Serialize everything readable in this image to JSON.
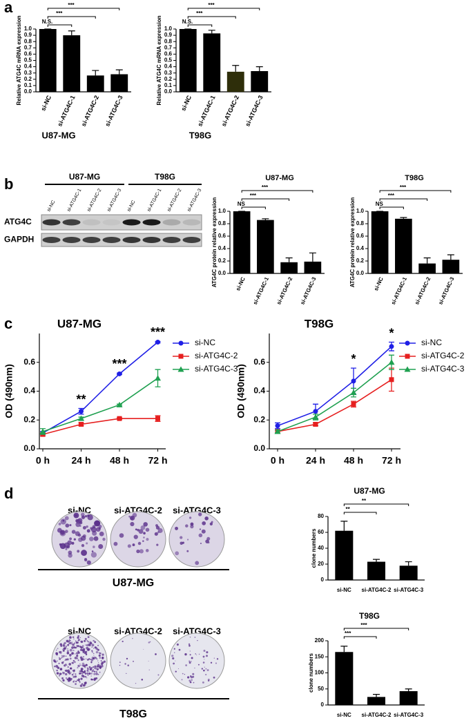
{
  "panels": [
    "a",
    "b",
    "c",
    "d"
  ],
  "blot": {
    "cell_lines": [
      "U87-MG",
      "T98G"
    ],
    "lanes": [
      "si-NC",
      "si-ATG4C-1",
      "si-ATG4C-2",
      "si-ATG4C-3",
      "si-NC",
      "si-ATG4C-1",
      "si-ATG4C-2",
      "si-ATG4C-3"
    ],
    "rows": [
      "ATG4C",
      "GAPDH"
    ]
  },
  "colony": {
    "rows": [
      {
        "cell_line": "U87-MG",
        "conditions": [
          "si-NC",
          "si-ATG4C-2",
          "si-ATG4C-3"
        ]
      },
      {
        "cell_line": "T98G",
        "conditions": [
          "si-NC",
          "si-ATG4C-2",
          "si-ATG4C-3"
        ]
      }
    ]
  },
  "chart_data": [
    {
      "type": "bar",
      "title": "U87-MG",
      "ylabel": "Relative ATG4C mRNA expression",
      "categories": [
        "si-NC",
        "si-ATG4C-1",
        "si-ATG4C-2",
        "si-ATG4C-3"
      ],
      "values": [
        1.0,
        0.9,
        0.26,
        0.28
      ],
      "errors": [
        0,
        0.07,
        0.08,
        0.07
      ],
      "color": "#000000",
      "ylim": [
        0,
        1
      ],
      "yticks": [
        {
          "value": 0,
          "label": "0.0"
        },
        0.1,
        0.2,
        0.3,
        0.4,
        0.5,
        0.6,
        0.7,
        0.8,
        0.9,
        {
          "value": 1,
          "label": "1.0"
        }
      ],
      "significance": [
        "N.S.",
        "***",
        "***"
      ]
    },
    {
      "type": "bar",
      "title": "T98G",
      "ylabel": "Relative ATG4C mRNA expression",
      "categories": [
        "si-NC",
        "si-ATG4C-1",
        "si-ATG4C-2",
        "si-ATG4C-3"
      ],
      "values": [
        1.0,
        0.93,
        0.32,
        0.33
      ],
      "errors": [
        0,
        0.05,
        0.1,
        0.07
      ],
      "colors": [
        "#000000",
        "#000000",
        "#2e2e0a",
        "#000000"
      ],
      "ylim": [
        0,
        1
      ],
      "yticks": [
        {
          "value": 0,
          "label": "0.0"
        },
        0.1,
        0.2,
        0.3,
        0.4,
        0.5,
        0.6,
        0.7,
        0.8,
        0.9,
        {
          "value": 1,
          "label": "1.0"
        }
      ],
      "significance": [
        "N.S.",
        "***",
        "***"
      ]
    },
    {
      "type": "bar",
      "title": "U87-MG",
      "ylabel": "ATG4C protein relative expression",
      "categories": [
        "si-NC",
        "si-ATG4C-1",
        "si-ATG4C-2",
        "si-ATG4C-3"
      ],
      "values": [
        1.0,
        0.86,
        0.18,
        0.19
      ],
      "errors": [
        0,
        0.02,
        0.07,
        0.14
      ],
      "color": "#000000",
      "ylim": [
        0,
        1
      ],
      "yticks": [
        {
          "value": 0,
          "label": "0.0"
        },
        0.2,
        0.4,
        0.6,
        0.8,
        {
          "value": 1,
          "label": "1.0"
        }
      ],
      "significance": [
        "NS",
        "***",
        "***"
      ]
    },
    {
      "type": "bar",
      "title": "T98G",
      "ylabel": "ATG4C protein relative expression",
      "categories": [
        "si-NC",
        "si-ATG4C-1",
        "si-ATG4C-2",
        "si-ATG4C-3"
      ],
      "values": [
        1.0,
        0.88,
        0.16,
        0.22
      ],
      "errors": [
        0,
        0.02,
        0.09,
        0.08
      ],
      "color": "#000000",
      "ylim": [
        0,
        1
      ],
      "yticks": [
        {
          "value": 0,
          "label": "0.0"
        },
        0.2,
        0.4,
        0.6,
        0.8,
        {
          "value": 1,
          "label": "1.0"
        }
      ],
      "significance": [
        "NS",
        "***",
        "***"
      ]
    },
    {
      "type": "line",
      "title": "U87-MG",
      "ylabel": "OD (490nm)",
      "categories": [
        "0 h",
        "24 h",
        "48 h",
        "72 h"
      ],
      "ylim": [
        0,
        0.8
      ],
      "yticks": [
        {
          "value": 0,
          "label": "0.0"
        },
        0.2,
        0.4,
        0.6
      ],
      "legend": "right",
      "series": [
        {
          "name": "si-NC",
          "color": "#1f1fe6",
          "marker": "circle",
          "values": [
            0.11,
            0.26,
            0.52,
            0.74
          ],
          "errors": [
            0.01,
            0.02,
            0.005,
            0.005
          ]
        },
        {
          "name": "si-ATG4C-2",
          "color": "#e61f1f",
          "marker": "square",
          "values": [
            0.1,
            0.17,
            0.21,
            0.21
          ],
          "errors": [
            0.01,
            0.01,
            0.005,
            0.02
          ]
        },
        {
          "name": "si-ATG4C-3",
          "color": "#1fa050",
          "marker": "triangle",
          "values": [
            0.12,
            0.21,
            0.305,
            0.49
          ],
          "errors": [
            0.02,
            0.01,
            0.005,
            0.06
          ]
        }
      ],
      "significance": [
        null,
        "**",
        "***",
        "***"
      ]
    },
    {
      "type": "line",
      "title": "T98G",
      "ylabel": "OD (490nm)",
      "categories": [
        "0 h",
        "24 h",
        "48 h",
        "72 h"
      ],
      "ylim": [
        0,
        0.8
      ],
      "yticks": [
        {
          "value": 0,
          "label": "0.0"
        },
        0.2,
        0.4,
        0.6
      ],
      "legend": "right",
      "series": [
        {
          "name": "si-NC",
          "color": "#1f1fe6",
          "marker": "circle",
          "values": [
            0.16,
            0.26,
            0.47,
            0.71
          ],
          "errors": [
            0.02,
            0.05,
            0.09,
            0.03
          ]
        },
        {
          "name": "si-ATG4C-2",
          "color": "#e61f1f",
          "marker": "square",
          "values": [
            0.12,
            0.17,
            0.31,
            0.48
          ],
          "errors": [
            0.01,
            0.01,
            0.02,
            0.08
          ]
        },
        {
          "name": "si-ATG4C-3",
          "color": "#1fa050",
          "marker": "triangle",
          "values": [
            0.12,
            0.22,
            0.39,
            0.6
          ],
          "errors": [
            0.01,
            0.02,
            0.03,
            0.05
          ]
        }
      ],
      "significance": [
        null,
        null,
        "*",
        "*"
      ]
    },
    {
      "type": "bar",
      "title": "U87-MG",
      "ylabel": "clone numbers",
      "categories": [
        "si-NC",
        "si-ATG4C-2",
        "si-ATG4C-3"
      ],
      "values": [
        62,
        23,
        18
      ],
      "errors": [
        12,
        3,
        5
      ],
      "color": "#000000",
      "ylim": [
        0,
        80
      ],
      "yticks": [
        0,
        20,
        40,
        60,
        80
      ],
      "significance": [
        "**",
        "**"
      ]
    },
    {
      "type": "bar",
      "title": "T98G",
      "ylabel": "clone numbers",
      "categories": [
        "si-NC",
        "si-ATG4C-2",
        "si-ATG4C-3"
      ],
      "values": [
        165,
        25,
        43
      ],
      "errors": [
        18,
        8,
        7
      ],
      "color": "#000000",
      "ylim": [
        0,
        200
      ],
      "yticks": [
        0,
        50,
        100,
        150,
        200
      ],
      "significance": [
        "***",
        "***"
      ]
    }
  ]
}
